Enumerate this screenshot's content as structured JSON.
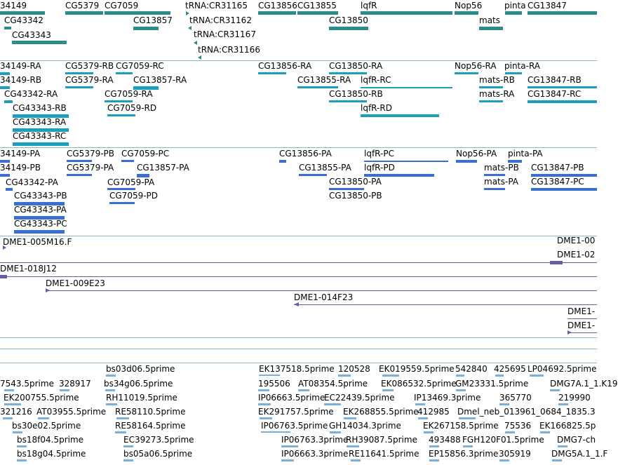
{
  "colors": {
    "gene": "#2e8b8b",
    "mrna": "#1a9fbf",
    "protein": "#3a6ed0",
    "clone": "#6a5aa8",
    "est": "#7ab0dc",
    "separator": "#8fb2c4"
  },
  "genes": [
    {
      "label": "34149"
    },
    {
      "label": "CG5379"
    },
    {
      "label": "CG7059"
    },
    {
      "label": "CG43342"
    },
    {
      "label": "CG43343"
    },
    {
      "label": "CG13857"
    },
    {
      "label": "tRNA:CR31165"
    },
    {
      "label": "tRNA:CR31162"
    },
    {
      "label": "tRNA:CR31167"
    },
    {
      "label": "tRNA:CR31166"
    },
    {
      "label": "CG13856"
    },
    {
      "label": "CG13855"
    },
    {
      "label": "CG13850"
    },
    {
      "label": "lqfR"
    },
    {
      "label": "Nop56"
    },
    {
      "label": "pinta"
    },
    {
      "label": "CG13847"
    },
    {
      "label": "mats"
    }
  ],
  "transcripts": [
    {
      "label": "34149-RA"
    },
    {
      "label": "34149-RB"
    },
    {
      "label": "CG43342-RA"
    },
    {
      "label": "CG43343-RB"
    },
    {
      "label": "CG43343-RA"
    },
    {
      "label": "CG43343-RC"
    },
    {
      "label": "CG5379-RB"
    },
    {
      "label": "CG5379-RA"
    },
    {
      "label": "CG7059-RC"
    },
    {
      "label": "CG13857-RA"
    },
    {
      "label": "CG7059-RA"
    },
    {
      "label": "CG7059-RD"
    },
    {
      "label": "CG13856-RA"
    },
    {
      "label": "CG13850-RA"
    },
    {
      "label": "CG13855-RA"
    },
    {
      "label": "lqfR-RC"
    },
    {
      "label": "CG13850-RB"
    },
    {
      "label": "lqfR-RD"
    },
    {
      "label": "Nop56-RA"
    },
    {
      "label": "pinta-RA"
    },
    {
      "label": "mats-RB"
    },
    {
      "label": "CG13847-RB"
    },
    {
      "label": "mats-RA"
    },
    {
      "label": "CG13847-RC"
    }
  ],
  "proteins": [
    {
      "label": "34149-PA"
    },
    {
      "label": "34149-PB"
    },
    {
      "label": "CG43342-PA"
    },
    {
      "label": "CG43343-PB"
    },
    {
      "label": "CG43343-PA"
    },
    {
      "label": "CG43343-PC"
    },
    {
      "label": "CG5379-PB"
    },
    {
      "label": "CG5379-PA"
    },
    {
      "label": "CG7059-PC"
    },
    {
      "label": "CG13857-PA"
    },
    {
      "label": "CG7059-PA"
    },
    {
      "label": "CG7059-PD"
    },
    {
      "label": "CG13856-PA"
    },
    {
      "label": "CG13855-PA"
    },
    {
      "label": "CG13850-PA"
    },
    {
      "label": "CG13850-PB"
    },
    {
      "label": "lqfR-PC"
    },
    {
      "label": "lqfR-PD"
    },
    {
      "label": "Nop56-PA"
    },
    {
      "label": "pinta-PA"
    },
    {
      "label": "mats-PB"
    },
    {
      "label": "CG13847-PB"
    },
    {
      "label": "mats-PA"
    },
    {
      "label": "CG13847-PC"
    }
  ],
  "clones": [
    {
      "label": "DME1-005M16.F"
    },
    {
      "label": "DME1-00"
    },
    {
      "label": "DME1-02"
    },
    {
      "label": "DME1-018J12"
    },
    {
      "label": "DME1-009E23"
    },
    {
      "label": "DME1-014F23"
    },
    {
      "label": "DME1-"
    },
    {
      "label": "DME1-"
    }
  ],
  "ests": [
    {
      "label": "bs03d06.5prime"
    },
    {
      "label": "EK137518.5prime"
    },
    {
      "label": "120528"
    },
    {
      "label": "EK019559.5prime"
    },
    {
      "label": "542840"
    },
    {
      "label": "425695"
    },
    {
      "label": "LP04692.5prime"
    },
    {
      "label": "7543.5prime"
    },
    {
      "label": "328917"
    },
    {
      "label": "bs34g06.5prime"
    },
    {
      "label": "195506"
    },
    {
      "label": "AT08354.5prime"
    },
    {
      "label": "EK086532.5prime"
    },
    {
      "label": "GM23331.5prime"
    },
    {
      "label": "DMG7A.1_1.K19"
    },
    {
      "label": "EK200755.5prime"
    },
    {
      "label": "RH11019.5prime"
    },
    {
      "label": "IP06663.5prime"
    },
    {
      "label": "EC22439.5prime"
    },
    {
      "label": "IP13469.3prime"
    },
    {
      "label": "365770"
    },
    {
      "label": "219990"
    },
    {
      "label": "321216"
    },
    {
      "label": "AT03955.5prime"
    },
    {
      "label": "RE58110.5prime"
    },
    {
      "label": "EK291757.5prime"
    },
    {
      "label": "EK268855.5prime"
    },
    {
      "label": "412985"
    },
    {
      "label": "Dmel_neb_013961_0684_1835.3"
    },
    {
      "label": "bs30e02.5prime"
    },
    {
      "label": "RE58164.5prime"
    },
    {
      "label": "IP06763.5prime"
    },
    {
      "label": "GH14034.3prime"
    },
    {
      "label": "EK267158.5prime"
    },
    {
      "label": "75536"
    },
    {
      "label": "EK166825.5p"
    },
    {
      "label": "bs18f04.5prime"
    },
    {
      "label": "EC39273.5prime"
    },
    {
      "label": "IP06763.3prime"
    },
    {
      "label": "RH39087.5prime"
    },
    {
      "label": "493488"
    },
    {
      "label": "FGH120F01.5prime"
    },
    {
      "label": "DMG7-ch"
    },
    {
      "label": "bs18g04.5prime"
    },
    {
      "label": "bs05a06.5prime"
    },
    {
      "label": "IP06663.3prime"
    },
    {
      "label": "RE11641.5prime"
    },
    {
      "label": "EP15856.3prime"
    },
    {
      "label": "305919"
    },
    {
      "label": "DMG5A.1_1.F"
    }
  ]
}
